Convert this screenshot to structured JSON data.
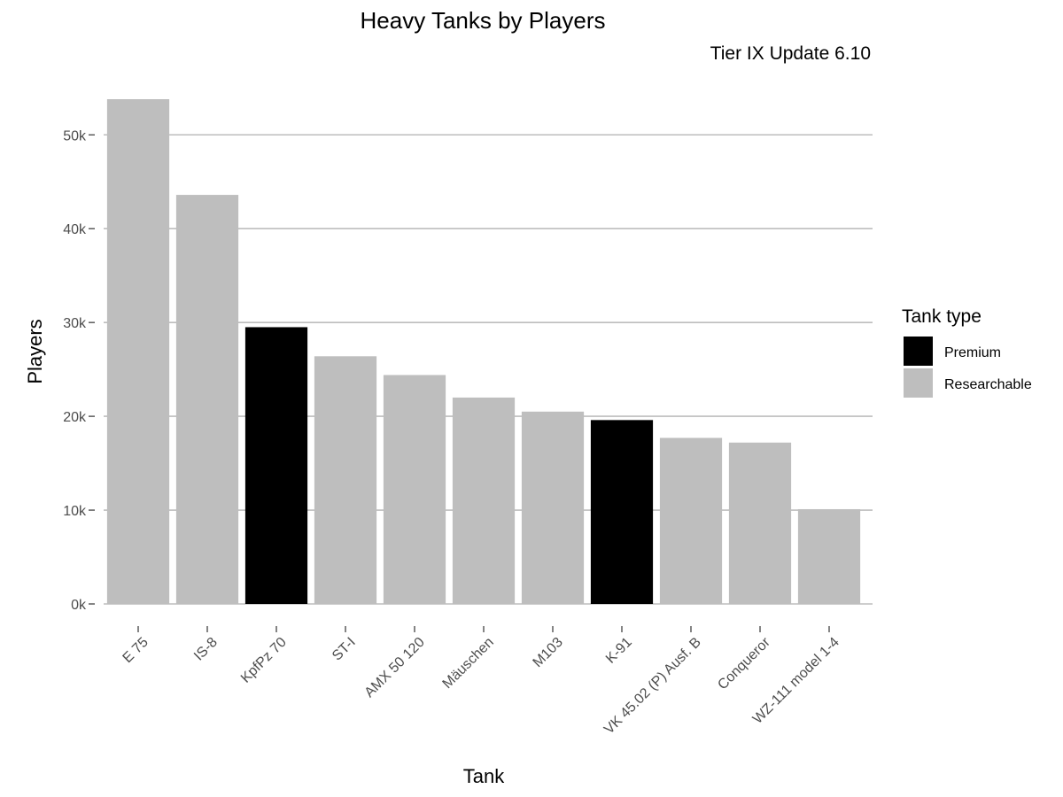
{
  "chart_data": {
    "type": "bar",
    "title": "Heavy Tanks by Players",
    "subtitle": "Tier IX Update 6.10",
    "xlabel": "Tank",
    "ylabel": "Players",
    "categories": [
      "E 75",
      "IS-8",
      "KpfPz 70",
      "ST-I",
      "AMX 50 120",
      "Mäuschen",
      "M103",
      "K-91",
      "VK 45.02 (P) Ausf. B",
      "Conqueror",
      "WZ-111 model 1-4"
    ],
    "values": [
      53800,
      43600,
      29500,
      26400,
      24400,
      22000,
      20500,
      19600,
      17700,
      17200,
      10100
    ],
    "tank_type": [
      "Researchable",
      "Researchable",
      "Premium",
      "Researchable",
      "Researchable",
      "Researchable",
      "Researchable",
      "Premium",
      "Researchable",
      "Researchable",
      "Researchable"
    ],
    "ylim": [
      0,
      53800
    ],
    "y_ticks": [
      0,
      10000,
      20000,
      30000,
      40000,
      50000
    ],
    "y_tick_labels": [
      "0k",
      "10k",
      "20k",
      "30k",
      "40k",
      "50k"
    ],
    "grid": true,
    "legend": {
      "title": "Tank type",
      "placement": "right",
      "entries": [
        {
          "label": "Premium",
          "color": "#000000"
        },
        {
          "label": "Researchable",
          "color": "#bebebe"
        }
      ]
    }
  }
}
